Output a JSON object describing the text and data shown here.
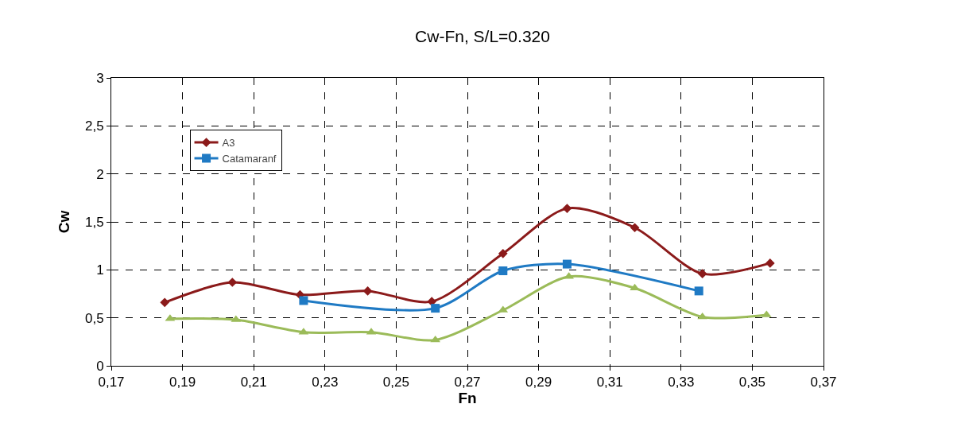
{
  "chart_data": {
    "type": "line",
    "title": "Cw-Fn, S/L=0.320",
    "xlabel": "Fn",
    "ylabel": "Cw",
    "xlim": [
      0.17,
      0.37
    ],
    "xticks": [
      {
        "value": 0.17,
        "label": "0,17"
      },
      {
        "value": 0.19,
        "label": "0,19"
      },
      {
        "value": 0.21,
        "label": "0,21"
      },
      {
        "value": 0.23,
        "label": "0,23"
      },
      {
        "value": 0.25,
        "label": "0,25"
      },
      {
        "value": 0.27,
        "label": "0,27"
      },
      {
        "value": 0.29,
        "label": "0,29"
      },
      {
        "value": 0.31,
        "label": "0,31"
      },
      {
        "value": 0.33,
        "label": "0,33"
      },
      {
        "value": 0.35,
        "label": "0,35"
      },
      {
        "value": 0.37,
        "label": "0,37"
      }
    ],
    "ylim": [
      0,
      3
    ],
    "yticks": [
      0,
      {
        "value": 0.5,
        "label": "0,5"
      },
      1,
      {
        "value": 1.5,
        "label": "1,5"
      },
      2,
      {
        "value": 2.5,
        "label": "2,5"
      },
      3
    ],
    "grid": true,
    "legend": "top left",
    "line_style": "solid",
    "series": [
      {
        "name": "A3",
        "color": "#8b1a1a",
        "marker": "diamond",
        "x": [
          0.185,
          0.204,
          0.223,
          0.242,
          0.26,
          0.28,
          0.298,
          0.317,
          0.336,
          0.355
        ],
        "values": [
          0.66,
          0.87,
          0.74,
          0.78,
          0.67,
          1.17,
          1.64,
          1.44,
          0.96,
          1.07
        ]
      },
      {
        "name": "Catamaranf",
        "color": "#1f7ac4",
        "marker": "square",
        "x": [
          0.224,
          0.261,
          0.28,
          0.298,
          0.335
        ],
        "values": [
          0.68,
          0.6,
          0.99,
          1.06,
          0.78
        ]
      },
      {
        "color": "#9bbb59",
        "marker": "triangle",
        "x": [
          0.1865,
          0.205,
          0.224,
          0.243,
          0.261,
          0.28,
          0.2985,
          0.317,
          0.336,
          0.354
        ],
        "values": [
          0.49,
          0.48,
          0.35,
          0.35,
          0.27,
          0.58,
          0.93,
          0.81,
          0.51,
          0.53
        ]
      }
    ]
  }
}
